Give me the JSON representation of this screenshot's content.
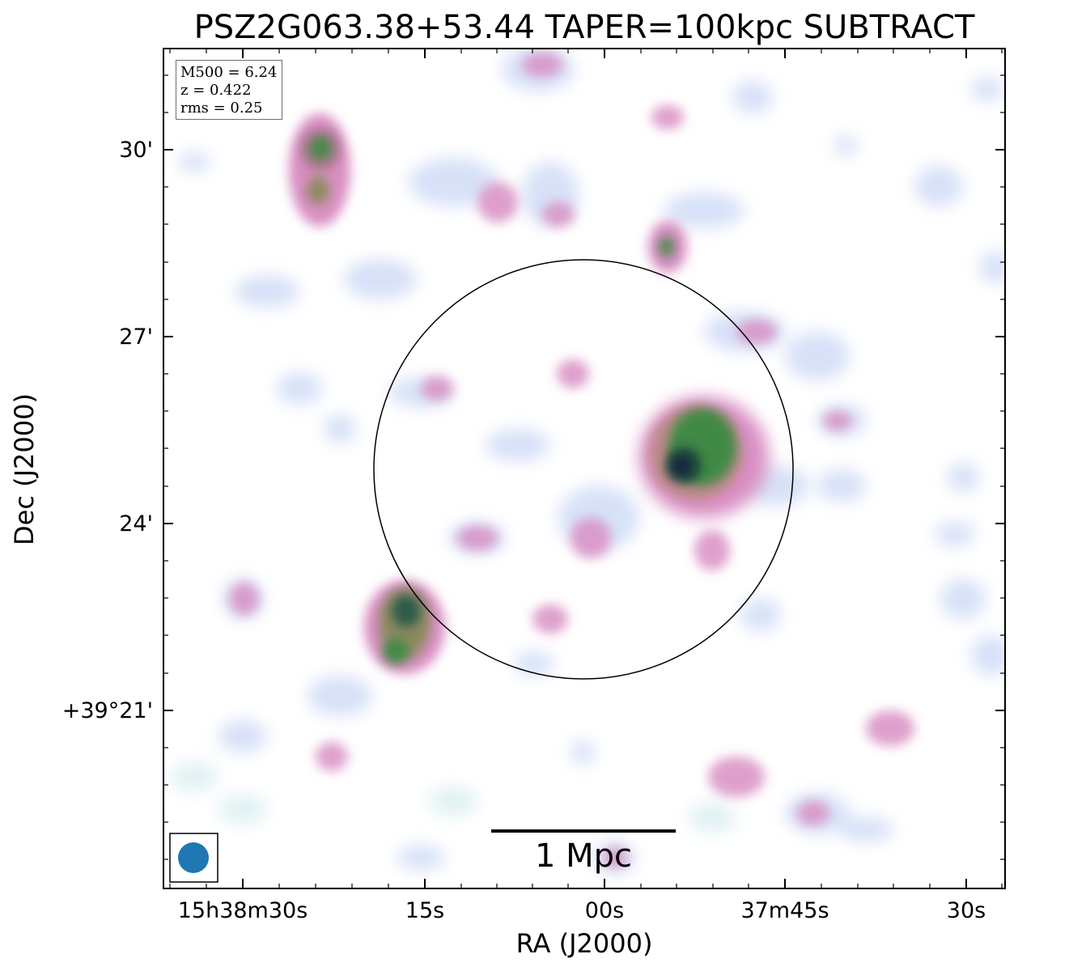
{
  "title": "PSZ2G063.38+53.44 TAPER=100kpc SUBTRACT",
  "xlabel": "RA (J2000)",
  "ylabel": "Dec (J2000)",
  "xticks": [
    "15h38m30s",
    "15s",
    "00s",
    "37m45s",
    "30s"
  ],
  "yticks": [
    "30'",
    "27'",
    "24'",
    "+39°21'"
  ],
  "info": {
    "mass": "M500 = 6.24",
    "redshift": "z = 0.422",
    "rms": "rms = 0.25"
  },
  "scalebar": {
    "label": "1 Mpc"
  },
  "colors": {
    "beam": "#1f77b4",
    "frame": "#000000",
    "faint": "#c8d8f4",
    "pink": "#d98fc4",
    "green": "#3f8a45",
    "dark": "#15213c"
  }
}
